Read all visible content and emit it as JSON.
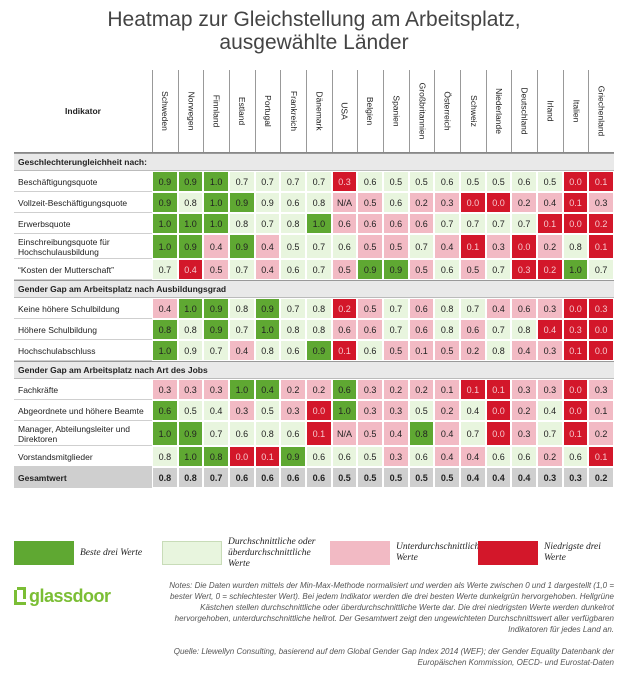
{
  "title": "Heatmap zur Gleichstellung am Arbeitsplatz,",
  "subtitle": "ausgewählte Länder",
  "colors": {
    "best": "#5fa832",
    "average": "#e8f5de",
    "below": "#f2bac4",
    "worst": "#d3172a"
  },
  "legend": [
    {
      "label": "Beste drei Werte",
      "key": "best"
    },
    {
      "label": "Durchschnittliche oder überdurchschnittliche Werte",
      "key": "average"
    },
    {
      "label": "Unterdurchschnittliche Werte",
      "key": "below"
    },
    {
      "label": "Niedrigste drei Werte",
      "key": "worst"
    }
  ],
  "logo": "glassdoor",
  "notes": "Notes: Die Daten wurden mittels der Min-Max-Methode normalisiert und werden als Werte zwischen 0 und 1 dargestellt (1,0 = bester Wert, 0 = schlechtester Wert). Bei jedem Indikator werden die drei besten Werte dunkelgrün hervorgehoben. Hellgrüne Kästchen stellen durchschnittliche oder überdurchschnittliche Werte dar. Die drei niedrigsten Werte werden dunkelrot hervorgehoben, unterdurchschnittliche hellrot. Der Gesamtwert zeigt den ungewichteten Durchschnittswert aller verfügbaren Indikatoren für jedes Land an.",
  "source": "Quelle: Llewellyn Consulting, basierend auf dem Global Gender Gap Index 2014 (WEF); der Gender Equality Datenbank der Europäischen Kommission, OECD- und Eurostat-Daten",
  "chart_data": {
    "type": "heatmap",
    "title": "Heatmap zur Gleichstellung am Arbeitsplatz, ausgewählte Länder",
    "indicator_header": "Indikator",
    "countries": [
      "Schweden",
      "Norwegen",
      "Finnland",
      "Estland",
      "Portugal",
      "Frankreich",
      "Dänemark",
      "USA",
      "Belgien",
      "Spanien",
      "Großbritannien",
      "Österreich",
      "Schweiz",
      "Niederlande",
      "Deutschland",
      "Irland",
      "Italien",
      "Griechenland"
    ],
    "rows": [
      {
        "type": "section",
        "label": "Geschlechterungleichheit nach:"
      },
      {
        "type": "data",
        "label": "Beschäftigungsquote",
        "values": [
          "0.9",
          "0.9",
          "1.0",
          "0.7",
          "0.7",
          "0.7",
          "0.7",
          "0.3",
          "0.6",
          "0.5",
          "0.5",
          "0.6",
          "0.5",
          "0.5",
          "0.6",
          "0.5",
          "0.0",
          "0.1"
        ],
        "cats": [
          "g",
          "g",
          "g",
          "a",
          "a",
          "a",
          "a",
          "w",
          "a",
          "a",
          "a",
          "a",
          "a",
          "a",
          "a",
          "a",
          "w",
          "w"
        ]
      },
      {
        "type": "data",
        "label": "Vollzeit-Beschäftigungsquote",
        "values": [
          "0.9",
          "0.8",
          "1.0",
          "0.9",
          "0.9",
          "0.6",
          "0.8",
          "N/A",
          "0.5",
          "0.6",
          "0.2",
          "0.3",
          "0.0",
          "0.0",
          "0.2",
          "0.4",
          "0.1",
          "0.3"
        ],
        "cats": [
          "g",
          "a",
          "g",
          "g",
          "a",
          "a",
          "a",
          "b",
          "b",
          "a",
          "b",
          "b",
          "w",
          "w",
          "b",
          "b",
          "w",
          "b"
        ]
      },
      {
        "type": "data",
        "label": "Erwerbsquote",
        "values": [
          "1.0",
          "1.0",
          "1.0",
          "0.8",
          "0.7",
          "0.8",
          "1.0",
          "0.6",
          "0.6",
          "0.6",
          "0.6",
          "0.7",
          "0.7",
          "0.7",
          "0.7",
          "0.1",
          "0.0",
          "0.2"
        ],
        "cats": [
          "g",
          "g",
          "g",
          "a",
          "a",
          "a",
          "g",
          "b",
          "b",
          "b",
          "b",
          "a",
          "a",
          "a",
          "a",
          "w",
          "w",
          "w"
        ]
      },
      {
        "type": "data",
        "label": "Einschreibungsquote für Hochschulausbildung",
        "values": [
          "1.0",
          "0.9",
          "0.4",
          "0.9",
          "0.4",
          "0.5",
          "0.7",
          "0.6",
          "0.5",
          "0.5",
          "0.7",
          "0.4",
          "0.1",
          "0.3",
          "0.0",
          "0.2",
          "0.8",
          "0.1"
        ],
        "cats": [
          "g",
          "g",
          "b",
          "g",
          "b",
          "a",
          "a",
          "a",
          "b",
          "b",
          "a",
          "b",
          "w",
          "b",
          "w",
          "b",
          "a",
          "w"
        ]
      },
      {
        "type": "data",
        "label": "“Kosten der Mutterschaft”",
        "values": [
          "0.7",
          "0.4",
          "0.5",
          "0.7",
          "0.4",
          "0.6",
          "0.7",
          "0.5",
          "0.9",
          "0.9",
          "0.5",
          "0.6",
          "0.5",
          "0.7",
          "0.3",
          "0.2",
          "1.0",
          "0.7"
        ],
        "cats": [
          "a",
          "w",
          "b",
          "a",
          "b",
          "a",
          "a",
          "b",
          "g",
          "g",
          "b",
          "a",
          "b",
          "a",
          "w",
          "w",
          "g",
          "a"
        ]
      },
      {
        "type": "section",
        "label": "Gender Gap am Arbeitsplatz nach Ausbildungsgrad"
      },
      {
        "type": "data",
        "label": "Keine höhere Schulbildung",
        "values": [
          "0.4",
          "1.0",
          "0.9",
          "0.8",
          "0.9",
          "0.7",
          "0.8",
          "0.2",
          "0.5",
          "0.7",
          "0.6",
          "0.8",
          "0.7",
          "0.4",
          "0.6",
          "0.3",
          "0.0",
          "0.3"
        ],
        "cats": [
          "b",
          "g",
          "g",
          "a",
          "g",
          "a",
          "a",
          "w",
          "b",
          "a",
          "b",
          "a",
          "a",
          "b",
          "b",
          "b",
          "w",
          "w"
        ]
      },
      {
        "type": "data",
        "label": "Höhere Schulbildung",
        "values": [
          "0.8",
          "0.8",
          "0.9",
          "0.7",
          "1.0",
          "0.8",
          "0.8",
          "0.6",
          "0.6",
          "0.7",
          "0.6",
          "0.8",
          "0.6",
          "0.7",
          "0.8",
          "0.4",
          "0.3",
          "0.0"
        ],
        "cats": [
          "g",
          "a",
          "g",
          "a",
          "g",
          "a",
          "a",
          "b",
          "b",
          "a",
          "b",
          "a",
          "b",
          "a",
          "a",
          "w",
          "w",
          "w"
        ]
      },
      {
        "type": "data",
        "label": "Hochschulabschluss",
        "values": [
          "1.0",
          "0.9",
          "0.7",
          "0.4",
          "0.8",
          "0.6",
          "0.9",
          "0.1",
          "0.6",
          "0.5",
          "0.1",
          "0.5",
          "0.2",
          "0.8",
          "0.4",
          "0.3",
          "0.1",
          "0.0"
        ],
        "cats": [
          "g",
          "a",
          "a",
          "b",
          "a",
          "a",
          "g",
          "w",
          "a",
          "b",
          "b",
          "b",
          "b",
          "a",
          "b",
          "b",
          "w",
          "w"
        ]
      },
      {
        "type": "section",
        "label": "Gender Gap am Arbeitsplatz nach Art des Jobs"
      },
      {
        "type": "data",
        "label": "Fachkräfte",
        "values": [
          "0.3",
          "0.3",
          "0.3",
          "1.0",
          "0.4",
          "0.2",
          "0.2",
          "0.6",
          "0.3",
          "0.2",
          "0.2",
          "0.1",
          "0.1",
          "0.1",
          "0.3",
          "0.3",
          "0.0",
          "0.3"
        ],
        "cats": [
          "b",
          "b",
          "b",
          "g",
          "g",
          "b",
          "b",
          "g",
          "b",
          "b",
          "b",
          "b",
          "w",
          "w",
          "b",
          "b",
          "w",
          "b"
        ]
      },
      {
        "type": "data",
        "label": "Abgeordnete und höhere Beamte",
        "values": [
          "0.6",
          "0.5",
          "0.4",
          "0.3",
          "0.5",
          "0.3",
          "0.0",
          "1.0",
          "0.3",
          "0.3",
          "0.5",
          "0.2",
          "0.4",
          "0.0",
          "0.2",
          "0.4",
          "0.0",
          "0.1"
        ],
        "cats": [
          "g",
          "a",
          "a",
          "b",
          "a",
          "b",
          "w",
          "g",
          "b",
          "b",
          "a",
          "b",
          "a",
          "w",
          "b",
          "a",
          "w",
          "b"
        ]
      },
      {
        "type": "data",
        "label": "Manager, Abteilungsleiter und Direktoren",
        "values": [
          "1.0",
          "0.9",
          "0.7",
          "0.6",
          "0.8",
          "0.6",
          "0.1",
          "N/A",
          "0.5",
          "0.4",
          "0.8",
          "0.4",
          "0.7",
          "0.0",
          "0.3",
          "0.7",
          "0.1",
          "0.2"
        ],
        "cats": [
          "g",
          "g",
          "a",
          "a",
          "a",
          "a",
          "w",
          "b",
          "b",
          "b",
          "g",
          "b",
          "a",
          "w",
          "b",
          "a",
          "w",
          "b"
        ]
      },
      {
        "type": "data",
        "label": "Vorstandsmitglieder",
        "values": [
          "0.8",
          "1.0",
          "0.8",
          "0.0",
          "0.1",
          "0.9",
          "0.6",
          "0.6",
          "0.5",
          "0.3",
          "0.6",
          "0.4",
          "0.4",
          "0.6",
          "0.6",
          "0.2",
          "0.6",
          "0.1"
        ],
        "cats": [
          "a",
          "g",
          "g",
          "w",
          "w",
          "g",
          "a",
          "a",
          "a",
          "b",
          "a",
          "b",
          "b",
          "a",
          "a",
          "b",
          "a",
          "w"
        ]
      },
      {
        "type": "total",
        "label": "Gesamtwert",
        "values": [
          "0.8",
          "0.8",
          "0.7",
          "0.6",
          "0.6",
          "0.6",
          "0.6",
          "0.5",
          "0.5",
          "0.5",
          "0.5",
          "0.5",
          "0.4",
          "0.4",
          "0.4",
          "0.3",
          "0.3",
          "0.2"
        ]
      }
    ]
  }
}
